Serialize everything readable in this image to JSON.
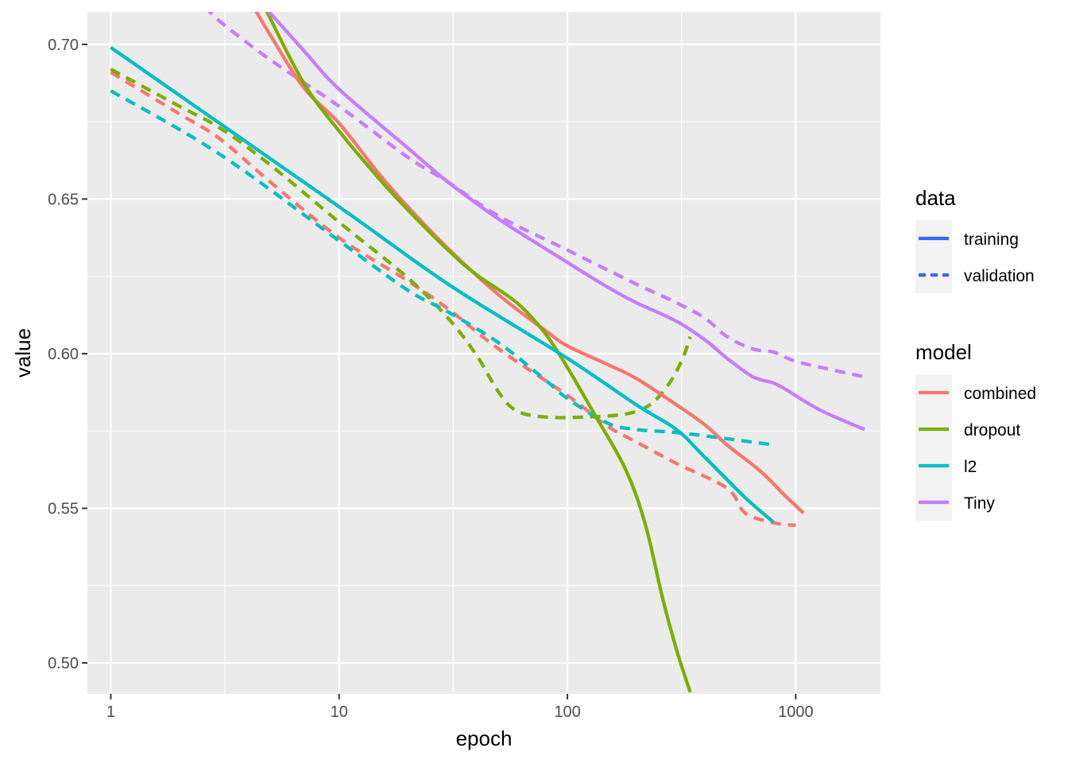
{
  "chart_data": {
    "type": "line",
    "xlabel": "epoch",
    "ylabel": "value",
    "x_scale": "log10",
    "xlim": [
      0.79,
      2350
    ],
    "ylim": [
      0.49,
      0.7105
    ],
    "x_ticks": [
      1,
      10,
      100,
      1000
    ],
    "x_tick_labels": [
      "1",
      "10",
      "100",
      "1000"
    ],
    "y_ticks": [
      0.5,
      0.55,
      0.6,
      0.65,
      0.7
    ],
    "y_tick_labels": [
      "0.50",
      "0.55",
      "0.60",
      "0.65",
      "0.70"
    ],
    "grid": true,
    "legend_placement": "right",
    "legends": [
      {
        "title": "data",
        "entries": [
          {
            "label": "training",
            "dash": "solid"
          },
          {
            "label": "validation",
            "dash": "dashed"
          }
        ]
      },
      {
        "title": "model",
        "entries": [
          {
            "label": "combined",
            "color": "#F8766D"
          },
          {
            "label": "dropout",
            "color": "#7CAE00"
          },
          {
            "label": "l2",
            "color": "#00BFC4"
          },
          {
            "label": "Tiny",
            "color": "#C77CFF"
          }
        ]
      }
    ],
    "series": [
      {
        "model": "combined",
        "data": "training",
        "color": "#F8766D",
        "dash": "solid",
        "points": [
          [
            4.2,
            0.7123
          ],
          [
            5,
            0.703
          ],
          [
            7,
            0.686
          ],
          [
            10,
            0.6745
          ],
          [
            15,
            0.658
          ],
          [
            20,
            0.6475
          ],
          [
            30,
            0.634
          ],
          [
            50,
            0.619
          ],
          [
            80,
            0.6075
          ],
          [
            100,
            0.6025
          ],
          [
            150,
            0.5965
          ],
          [
            200,
            0.592
          ],
          [
            300,
            0.5835
          ],
          [
            400,
            0.577
          ],
          [
            500,
            0.5705
          ],
          [
            700,
            0.562
          ],
          [
            900,
            0.554
          ],
          [
            1080,
            0.5485
          ]
        ]
      },
      {
        "model": "combined",
        "data": "validation",
        "color": "#F8766D",
        "dash": "dashed",
        "points": [
          [
            1,
            0.691
          ],
          [
            2,
            0.6775
          ],
          [
            3,
            0.6695
          ],
          [
            5,
            0.6555
          ],
          [
            10,
            0.6375
          ],
          [
            20,
            0.6235
          ],
          [
            30,
            0.6145
          ],
          [
            50,
            0.6015
          ],
          [
            100,
            0.5865
          ],
          [
            150,
            0.5765
          ],
          [
            200,
            0.5715
          ],
          [
            300,
            0.5645
          ],
          [
            500,
            0.5565
          ],
          [
            600,
            0.5485
          ],
          [
            800,
            0.5453
          ],
          [
            1000,
            0.5445
          ]
        ]
      },
      {
        "model": "dropout",
        "data": "training",
        "color": "#7CAE00",
        "dash": "solid",
        "points": [
          [
            4.7,
            0.7123
          ],
          [
            7,
            0.6875
          ],
          [
            10,
            0.672
          ],
          [
            15,
            0.6565
          ],
          [
            20,
            0.6465
          ],
          [
            30,
            0.6335
          ],
          [
            40,
            0.6255
          ],
          [
            60,
            0.6165
          ],
          [
            80,
            0.6065
          ],
          [
            100,
            0.5955
          ],
          [
            130,
            0.581
          ],
          [
            180,
            0.5625
          ],
          [
            220,
            0.5445
          ],
          [
            260,
            0.5215
          ],
          [
            300,
            0.5045
          ],
          [
            345,
            0.4905
          ]
        ]
      },
      {
        "model": "dropout",
        "data": "validation",
        "color": "#7CAE00",
        "dash": "dashed",
        "points": [
          [
            1,
            0.692
          ],
          [
            2,
            0.68
          ],
          [
            3,
            0.673
          ],
          [
            5,
            0.661
          ],
          [
            10,
            0.6425
          ],
          [
            20,
            0.6245
          ],
          [
            30,
            0.6115
          ],
          [
            40,
            0.5995
          ],
          [
            50,
            0.5875
          ],
          [
            60,
            0.5815
          ],
          [
            80,
            0.5795
          ],
          [
            120,
            0.5795
          ],
          [
            180,
            0.5805
          ],
          [
            230,
            0.5835
          ],
          [
            280,
            0.5905
          ],
          [
            320,
            0.5985
          ],
          [
            345,
            0.6055
          ]
        ]
      },
      {
        "model": "l2",
        "data": "training",
        "color": "#00BFC4",
        "dash": "solid",
        "points": [
          [
            1,
            0.699
          ],
          [
            10,
            0.6475
          ],
          [
            30,
            0.6225
          ],
          [
            100,
            0.5985
          ],
          [
            200,
            0.5835
          ],
          [
            300,
            0.5755
          ],
          [
            400,
            0.5665
          ],
          [
            600,
            0.5535
          ],
          [
            800,
            0.5455
          ]
        ]
      },
      {
        "model": "l2",
        "data": "validation",
        "color": "#00BFC4",
        "dash": "dashed",
        "points": [
          [
            1,
            0.685
          ],
          [
            3,
            0.6645
          ],
          [
            10,
            0.6365
          ],
          [
            20,
            0.6205
          ],
          [
            30,
            0.6135
          ],
          [
            50,
            0.6035
          ],
          [
            80,
            0.5915
          ],
          [
            100,
            0.5855
          ],
          [
            150,
            0.5775
          ],
          [
            200,
            0.5755
          ],
          [
            300,
            0.5745
          ],
          [
            500,
            0.5725
          ],
          [
            800,
            0.5705
          ]
        ]
      },
      {
        "model": "Tiny",
        "data": "training",
        "color": "#C77CFF",
        "dash": "solid",
        "points": [
          [
            4.7,
            0.7123
          ],
          [
            7,
            0.698
          ],
          [
            10,
            0.6855
          ],
          [
            20,
            0.6665
          ],
          [
            30,
            0.6555
          ],
          [
            50,
            0.6435
          ],
          [
            100,
            0.6295
          ],
          [
            150,
            0.6215
          ],
          [
            200,
            0.6165
          ],
          [
            300,
            0.6105
          ],
          [
            400,
            0.6045
          ],
          [
            500,
            0.5985
          ],
          [
            650,
            0.5925
          ],
          [
            800,
            0.5905
          ],
          [
            900,
            0.5885
          ],
          [
            1100,
            0.5845
          ],
          [
            1300,
            0.5815
          ],
          [
            1600,
            0.5785
          ],
          [
            2000,
            0.5755
          ]
        ]
      },
      {
        "model": "Tiny",
        "data": "validation",
        "color": "#C77CFF",
        "dash": "dashed",
        "points": [
          [
            2.6,
            0.7123
          ],
          [
            3,
            0.7075
          ],
          [
            5,
            0.695
          ],
          [
            10,
            0.68
          ],
          [
            20,
            0.6635
          ],
          [
            30,
            0.6555
          ],
          [
            50,
            0.6445
          ],
          [
            100,
            0.6335
          ],
          [
            200,
            0.6225
          ],
          [
            300,
            0.6165
          ],
          [
            400,
            0.6115
          ],
          [
            500,
            0.6055
          ],
          [
            650,
            0.6015
          ],
          [
            800,
            0.6005
          ],
          [
            1000,
            0.5975
          ],
          [
            1500,
            0.5945
          ],
          [
            2000,
            0.5925
          ]
        ]
      }
    ]
  }
}
